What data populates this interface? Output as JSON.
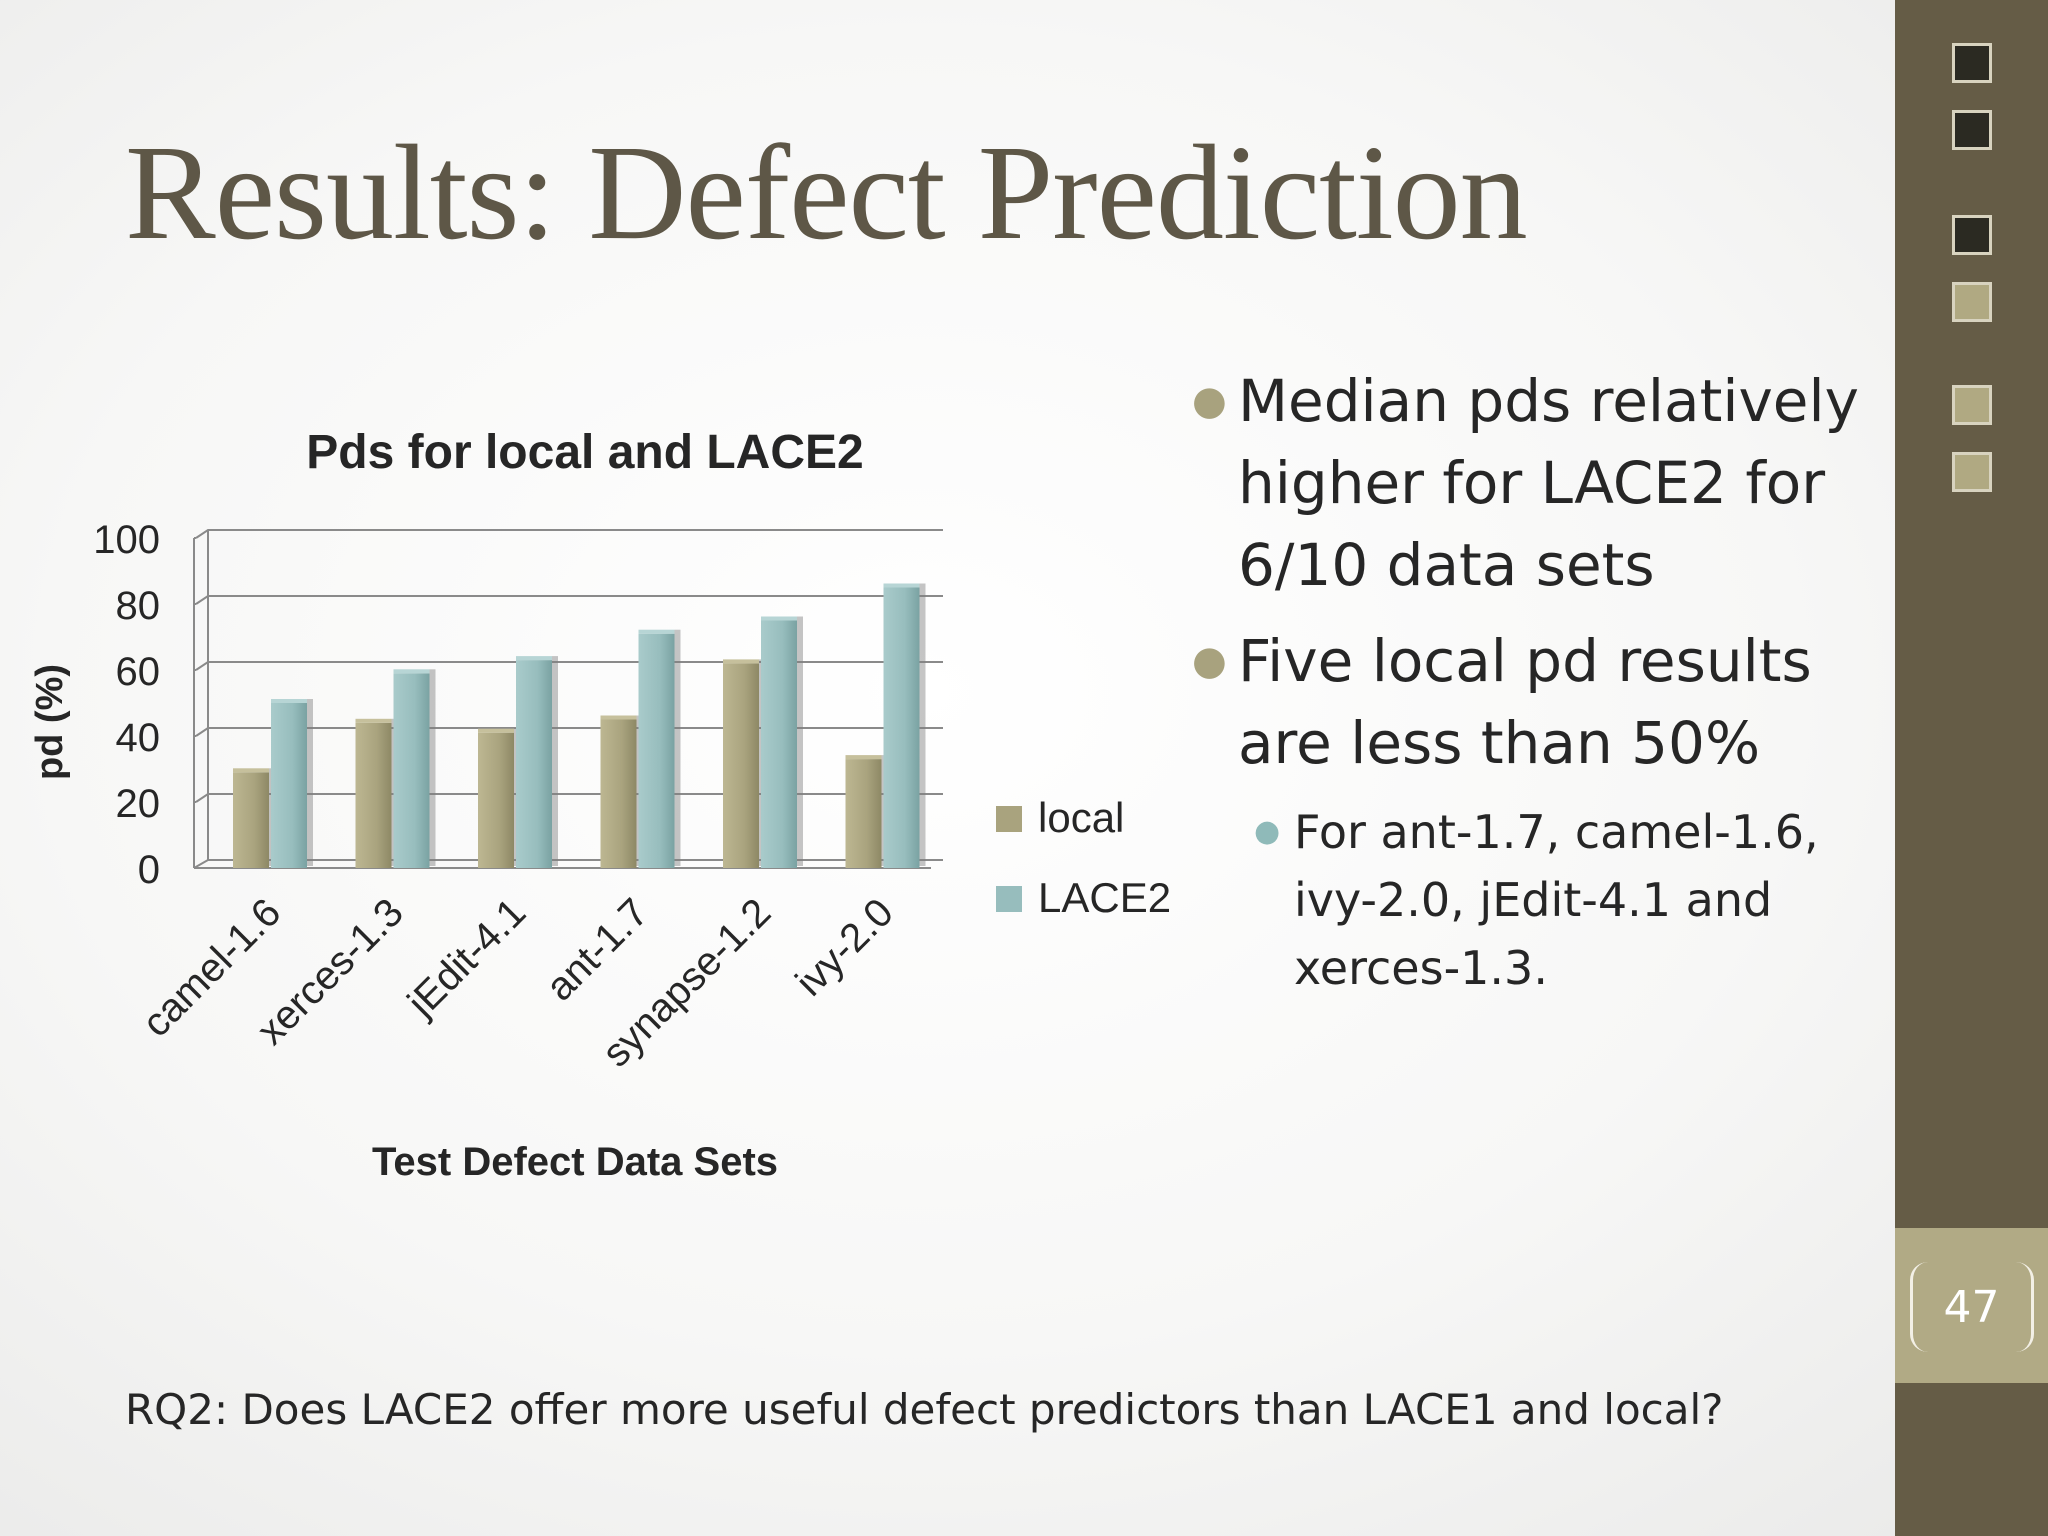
{
  "slide": {
    "title": "Results: Defect Prediction",
    "page_number": "47",
    "footer_question": "RQ2: Does LACE2 offer more useful defect predictors than LACE1 and local?",
    "bullets": [
      "Median pds relatively higher for LACE2 for 6/10 data sets",
      "Five local pd results are less than 50%"
    ],
    "sub_bullet": "For ant-1.7, camel-1.6, ivy-2.0, jEdit-4.1 and xerces-1.3."
  },
  "colors": {
    "title": "#5e5747",
    "sidebar": "#655c46",
    "local_series": "#a9a37e",
    "lace2_series": "#97bdbd",
    "bullet_dot": "#a8a27e"
  },
  "sidebar_squares": [
    "dark",
    "dark",
    "dark",
    "light",
    "light",
    "light"
  ],
  "chart_data": {
    "type": "bar",
    "title": "Pds for local and LACE2",
    "xlabel": "Test Defect Data Sets",
    "ylabel": "pd (%)",
    "ylim": [
      0,
      100
    ],
    "yticks": [
      "0",
      "20",
      "40",
      "60",
      "80",
      "100"
    ],
    "grid": true,
    "legend": "right",
    "categories": [
      "camel-1.6",
      "xerces-1.3",
      "jEdit-4.1",
      "ant-1.7",
      "synapse-1.2",
      "ivy-2.0"
    ],
    "series": [
      {
        "name": "local",
        "color": "#a9a37e",
        "values": [
          29,
          44,
          41,
          45,
          62,
          33
        ]
      },
      {
        "name": "LACE2",
        "color": "#97bdbd",
        "values": [
          50,
          59,
          63,
          71,
          75,
          85
        ]
      }
    ]
  }
}
